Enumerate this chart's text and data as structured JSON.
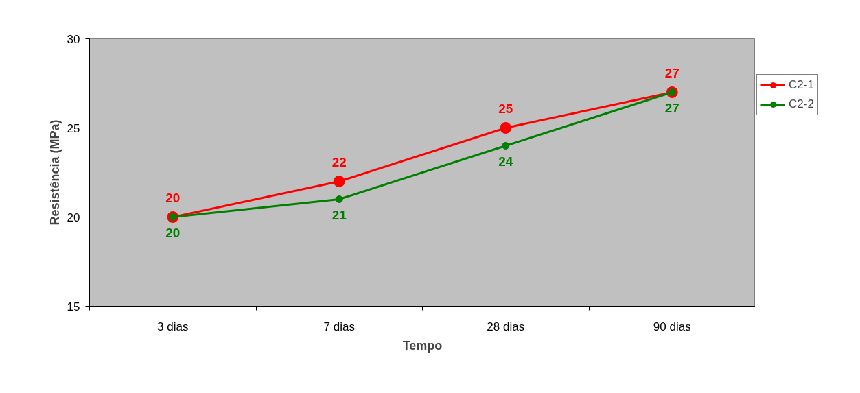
{
  "chart_data": {
    "type": "line",
    "xlabel": "Tempo",
    "ylabel": "Resistência (MPa)",
    "categories": [
      "3 dias",
      "7 dias",
      "28 dias",
      "90 dias"
    ],
    "series": [
      {
        "name": "C2-1",
        "color": "#ff0000",
        "values": [
          20,
          22,
          25,
          27
        ]
      },
      {
        "name": "C2-2",
        "color": "#008000",
        "values": [
          20,
          21,
          24,
          27
        ]
      }
    ],
    "ylim": [
      15,
      30
    ],
    "yticks": [
      15,
      20,
      25,
      30
    ],
    "grid": "y",
    "legend": "right",
    "marker": "circle",
    "data_labels": true
  }
}
